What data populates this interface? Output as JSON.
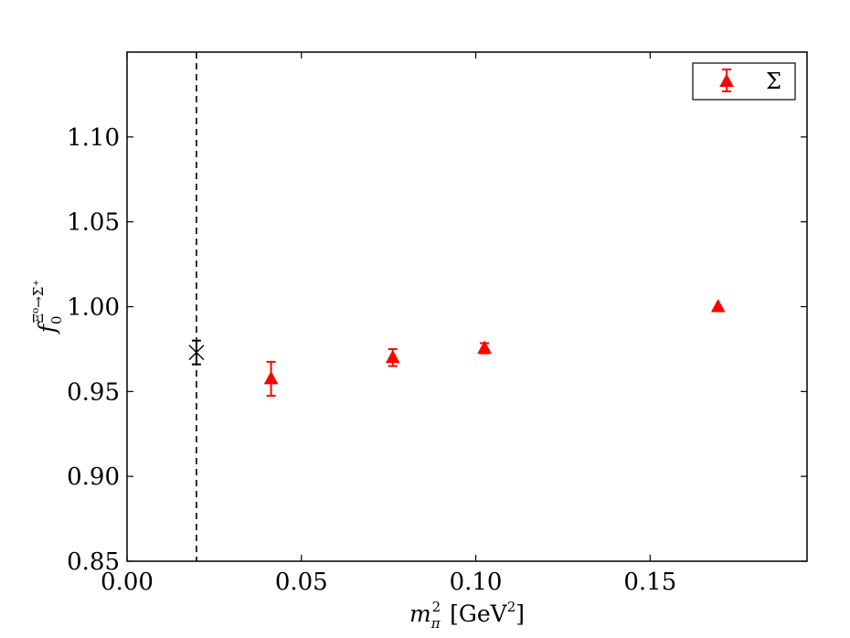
{
  "chart_data": {
    "type": "scatter",
    "title": "",
    "xlabel": "m_π² [GeV²]",
    "ylabel": "f₀^{Ξ⁰→Σ⁺}",
    "xlim": [
      0.0,
      0.195
    ],
    "ylim": [
      0.85,
      1.15
    ],
    "xticks": [
      0.0,
      0.05,
      0.1,
      0.15
    ],
    "xtick_labels": [
      "0.00",
      "0.05",
      "0.10",
      "0.15"
    ],
    "yticks": [
      0.85,
      0.9,
      0.95,
      1.0,
      1.05,
      1.1
    ],
    "ytick_labels": [
      "0.85",
      "0.90",
      "0.95",
      "1.00",
      "1.05",
      "1.10"
    ],
    "grid": false,
    "legend_position": "top-right",
    "series": [
      {
        "name": "Σ",
        "marker": "triangle",
        "color": "#ff0000",
        "points": [
          {
            "x": 0.0413,
            "y": 0.9575,
            "err": 0.01
          },
          {
            "x": 0.0762,
            "y": 0.97,
            "err": 0.005
          },
          {
            "x": 0.1025,
            "y": 0.9755,
            "err": 0.003
          },
          {
            "x": 0.1695,
            "y": 1.0,
            "err": 0.0
          }
        ]
      },
      {
        "marker": "x",
        "color": "#000000",
        "points": [
          {
            "x": 0.0199,
            "y": 0.973,
            "err": 0.007
          }
        ]
      }
    ],
    "vertical_lines": [
      {
        "x": 0.0199,
        "style": "dashed",
        "color": "#000000"
      }
    ]
  }
}
